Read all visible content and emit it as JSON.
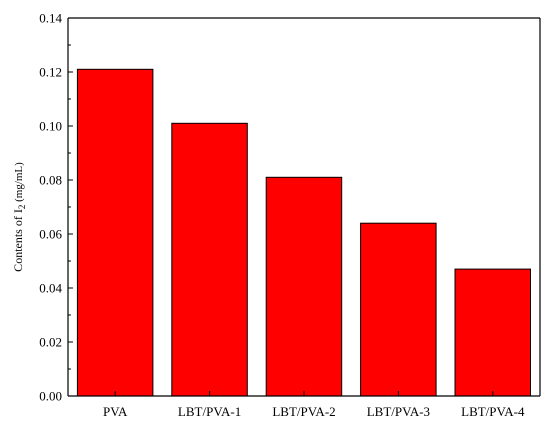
{
  "chart_data": {
    "type": "bar",
    "categories": [
      "PVA",
      "LBT/PVA-1",
      "LBT/PVA-2",
      "LBT/PVA-3",
      "LBT/PVA-4"
    ],
    "values": [
      0.121,
      0.101,
      0.081,
      0.064,
      0.047
    ],
    "ylabel_main": "Contents of I",
    "ylabel_sub": "2",
    "ylabel_unit": " (mg/mL)",
    "ylim": [
      0.0,
      0.14
    ],
    "yticks": [
      "0.00",
      "0.02",
      "0.04",
      "0.06",
      "0.08",
      "0.10",
      "0.12",
      "0.14"
    ],
    "bar_color": "#ff0000",
    "bar_edge_color": "#000000",
    "grid": false
  }
}
